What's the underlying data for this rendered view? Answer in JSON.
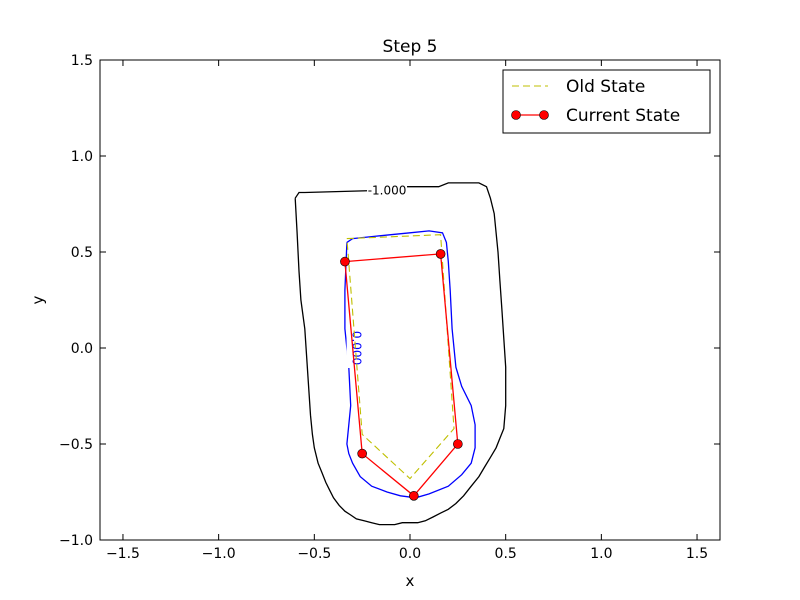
{
  "chart_data": {
    "type": "line",
    "title": "Step 5",
    "xlabel": "x",
    "ylabel": "y",
    "xlim": [
      -1.62,
      1.62
    ],
    "ylim": [
      -1.0,
      1.5
    ],
    "xticks": [
      -1.5,
      -1.0,
      -0.5,
      0.0,
      0.5,
      1.0,
      1.5
    ],
    "yticks": [
      -1.0,
      -0.5,
      0.0,
      0.5,
      1.0,
      1.5
    ],
    "xtick_labels": [
      "−1.5",
      "−1.0",
      "−0.5",
      "0.0",
      "0.5",
      "1.0",
      "1.5"
    ],
    "ytick_labels": [
      "−1.0",
      "−0.5",
      "0.0",
      "0.5",
      "1.0",
      "1.5"
    ],
    "grid": false,
    "legend_position": "top-right",
    "series": [
      {
        "name": "Old State",
        "style": "dashed",
        "color": "#bfbf00",
        "x": [
          -0.33,
          0.16,
          0.23,
          0.0,
          -0.25,
          -0.33
        ],
        "y": [
          0.57,
          0.59,
          -0.42,
          -0.68,
          -0.45,
          0.57
        ]
      },
      {
        "name": "Current State",
        "style": "solid-markers",
        "color": "#ff0000",
        "marker_color": "#ff0000",
        "x": [
          -0.34,
          0.16,
          0.25,
          0.02,
          -0.25,
          -0.34
        ],
        "y": [
          0.45,
          0.49,
          -0.5,
          -0.77,
          -0.55,
          0.45
        ]
      }
    ],
    "contours": [
      {
        "level_label": "-1.000",
        "color": "#000000",
        "label_position": [
          -0.12,
          0.82
        ],
        "x": [
          -0.6,
          -0.59,
          -0.58,
          -0.57,
          -0.55,
          -0.54,
          -0.53,
          -0.52,
          -0.51,
          -0.5,
          -0.48,
          -0.46,
          -0.44,
          -0.42,
          -0.4,
          -0.37,
          -0.34,
          -0.31,
          -0.28,
          -0.24,
          -0.2,
          -0.16,
          -0.12,
          -0.08,
          -0.04,
          0.0,
          0.04,
          0.08,
          0.12,
          0.16,
          0.2,
          0.24,
          0.28,
          0.32,
          0.36,
          0.39,
          0.42,
          0.45,
          0.47,
          0.49,
          0.5,
          0.5,
          0.49,
          0.48,
          0.47,
          0.46,
          0.45,
          0.44,
          0.42,
          0.4,
          0.36,
          0.2,
          0.15,
          -0.1,
          -0.2,
          -0.55,
          -0.58,
          -0.6
        ],
        "y": [
          0.78,
          0.6,
          0.4,
          0.25,
          0.1,
          -0.05,
          -0.2,
          -0.35,
          -0.45,
          -0.52,
          -0.6,
          -0.65,
          -0.7,
          -0.74,
          -0.78,
          -0.82,
          -0.85,
          -0.87,
          -0.89,
          -0.9,
          -0.91,
          -0.92,
          -0.92,
          -0.92,
          -0.91,
          -0.91,
          -0.91,
          -0.9,
          -0.88,
          -0.86,
          -0.84,
          -0.81,
          -0.77,
          -0.72,
          -0.67,
          -0.62,
          -0.57,
          -0.52,
          -0.47,
          -0.42,
          -0.3,
          -0.1,
          0.05,
          0.2,
          0.35,
          0.5,
          0.6,
          0.7,
          0.78,
          0.84,
          0.86,
          0.86,
          0.84,
          0.84,
          0.82,
          0.81,
          0.81,
          0.78
        ]
      },
      {
        "level_label": "0.000",
        "color": "#0000ff",
        "label_position": [
          -0.3,
          0.0
        ],
        "x": [
          -0.33,
          -0.3,
          -0.2,
          -0.1,
          0.0,
          0.1,
          0.17,
          0.19,
          0.2,
          0.21,
          0.22,
          0.24,
          0.27,
          0.32,
          0.34,
          0.34,
          0.32,
          0.27,
          0.2,
          0.1,
          0.03,
          -0.05,
          -0.12,
          -0.2,
          -0.26,
          -0.3,
          -0.32,
          -0.33,
          -0.32,
          -0.31,
          -0.32,
          -0.34,
          -0.34,
          -0.33
        ],
        "y": [
          0.55,
          0.57,
          0.58,
          0.59,
          0.6,
          0.61,
          0.6,
          0.55,
          0.45,
          0.3,
          0.1,
          -0.1,
          -0.2,
          -0.3,
          -0.4,
          -0.52,
          -0.6,
          -0.66,
          -0.72,
          -0.76,
          -0.78,
          -0.77,
          -0.75,
          -0.72,
          -0.67,
          -0.6,
          -0.55,
          -0.5,
          -0.4,
          -0.3,
          -0.1,
          0.1,
          0.3,
          0.55
        ]
      }
    ]
  }
}
